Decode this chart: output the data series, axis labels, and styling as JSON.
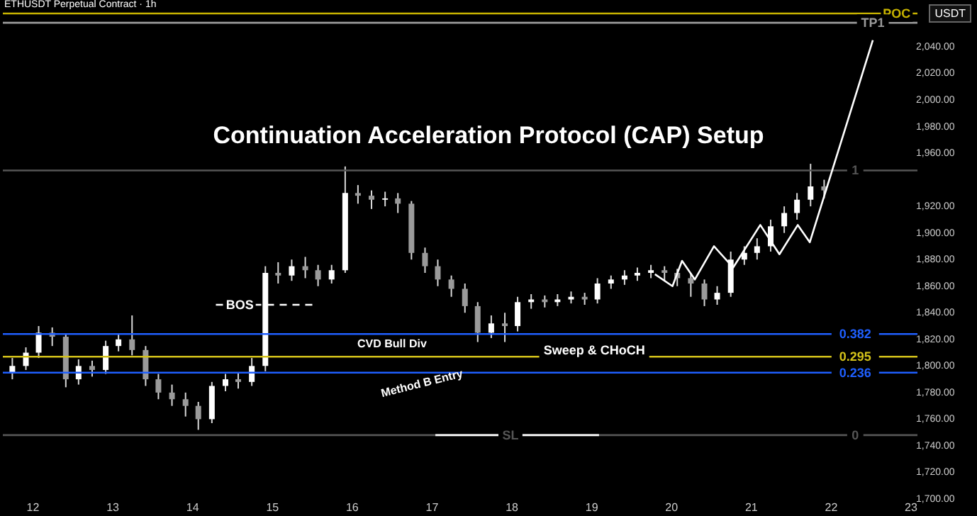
{
  "chart_data": {
    "type": "candlestick",
    "title": "Continuation Acceleration Protocol (CAP) Setup",
    "x": [
      11.75,
      11.92,
      12.08,
      12.25,
      12.42,
      12.58,
      12.75,
      12.92,
      13.08,
      13.25,
      13.42,
      13.58,
      13.75,
      13.92,
      14.08,
      14.25,
      14.42,
      14.58,
      14.75,
      14.92,
      15.08,
      15.25,
      15.42,
      15.58,
      15.75,
      15.92,
      16.08,
      16.25,
      16.42,
      16.58,
      16.75,
      16.92,
      17.08,
      17.25,
      17.42,
      17.58,
      17.75,
      17.92,
      18.08,
      18.25,
      18.42,
      18.58,
      18.75,
      18.92,
      19.08,
      19.25,
      19.42,
      19.58,
      19.75,
      19.92,
      20.08,
      20.25,
      20.42,
      20.58,
      20.75,
      20.92,
      21.08,
      21.25,
      21.42,
      21.58,
      21.75,
      21.92
    ],
    "ohlc": [
      [
        1795,
        1806,
        1790,
        1800
      ],
      [
        1800,
        1814,
        1797,
        1810
      ],
      [
        1810,
        1830,
        1806,
        1825
      ],
      [
        1825,
        1829,
        1815,
        1822
      ],
      [
        1822,
        1824,
        1784,
        1790
      ],
      [
        1790,
        1805,
        1786,
        1800
      ],
      [
        1800,
        1804,
        1792,
        1797
      ],
      [
        1797,
        1819,
        1794,
        1815
      ],
      [
        1815,
        1824,
        1811,
        1820
      ],
      [
        1820,
        1838,
        1808,
        1812
      ],
      [
        1812,
        1815,
        1785,
        1790
      ],
      [
        1790,
        1794,
        1775,
        1780
      ],
      [
        1780,
        1786,
        1770,
        1775
      ],
      [
        1775,
        1780,
        1762,
        1770
      ],
      [
        1770,
        1773,
        1752,
        1760
      ],
      [
        1760,
        1788,
        1757,
        1785
      ],
      [
        1785,
        1794,
        1781,
        1790
      ],
      [
        1790,
        1795,
        1783,
        1788
      ],
      [
        1788,
        1806,
        1785,
        1800
      ],
      [
        1800,
        1875,
        1796,
        1870
      ],
      [
        1870,
        1878,
        1862,
        1868
      ],
      [
        1868,
        1880,
        1864,
        1875
      ],
      [
        1875,
        1882,
        1866,
        1872
      ],
      [
        1872,
        1876,
        1860,
        1865
      ],
      [
        1865,
        1876,
        1862,
        1872
      ],
      [
        1872,
        1950,
        1870,
        1930
      ],
      [
        1930,
        1936,
        1922,
        1928
      ],
      [
        1928,
        1932,
        1918,
        1925
      ],
      [
        1925,
        1931,
        1920,
        1926
      ],
      [
        1926,
        1930,
        1915,
        1922
      ],
      [
        1922,
        1924,
        1880,
        1885
      ],
      [
        1885,
        1889,
        1870,
        1875
      ],
      [
        1875,
        1880,
        1860,
        1865
      ],
      [
        1865,
        1868,
        1852,
        1858
      ],
      [
        1858,
        1862,
        1840,
        1845
      ],
      [
        1845,
        1848,
        1818,
        1825
      ],
      [
        1825,
        1838,
        1821,
        1832
      ],
      [
        1832,
        1840,
        1818,
        1830
      ],
      [
        1830,
        1852,
        1826,
        1848
      ],
      [
        1848,
        1854,
        1843,
        1850
      ],
      [
        1850,
        1853,
        1844,
        1848
      ],
      [
        1848,
        1854,
        1845,
        1850
      ],
      [
        1850,
        1856,
        1847,
        1852
      ],
      [
        1852,
        1855,
        1846,
        1850
      ],
      [
        1850,
        1866,
        1847,
        1862
      ],
      [
        1862,
        1868,
        1858,
        1865
      ],
      [
        1865,
        1872,
        1861,
        1868
      ],
      [
        1868,
        1874,
        1864,
        1870
      ],
      [
        1870,
        1876,
        1866,
        1872
      ],
      [
        1872,
        1875,
        1864,
        1870
      ],
      [
        1870,
        1873,
        1860,
        1866
      ],
      [
        1866,
        1870,
        1852,
        1862
      ],
      [
        1862,
        1865,
        1845,
        1850
      ],
      [
        1850,
        1860,
        1846,
        1855
      ],
      [
        1855,
        1886,
        1852,
        1880
      ],
      [
        1880,
        1890,
        1876,
        1885
      ],
      [
        1885,
        1896,
        1880,
        1890
      ],
      [
        1890,
        1910,
        1886,
        1905
      ],
      [
        1905,
        1920,
        1900,
        1915
      ],
      [
        1915,
        1930,
        1910,
        1925
      ],
      [
        1925,
        1952,
        1920,
        1935
      ],
      [
        1935,
        1940,
        1926,
        1932
      ]
    ],
    "series": [
      {
        "type": "line",
        "color": "#ffffff",
        "line_style": "dashed",
        "x": [
          14.3,
          15.55
        ],
        "values": [
          1846,
          1846
        ]
      },
      {
        "type": "line",
        "color": "#ffffff",
        "x": [
          17.05,
          19.1
        ],
        "values": [
          1748,
          1748
        ]
      },
      {
        "type": "line",
        "color": "#ffffff",
        "x": [
          19.8,
          20.02,
          20.14,
          20.3,
          20.54,
          20.78,
          21.12,
          21.36,
          21.59,
          21.74,
          22.53
        ],
        "values": [
          1869,
          1860,
          1879,
          1865,
          1890,
          1874,
          1906,
          1884,
          1906,
          1893,
          2045
        ]
      }
    ],
    "xlim": [
      11.72,
      23.0
    ],
    "xticks": [
      12,
      13,
      14,
      15,
      16,
      17,
      18,
      19,
      20,
      21,
      22,
      23
    ],
    "ylim": [
      1700,
      2073
    ],
    "yticks": [
      {
        "value": 1700,
        "label": "1,700.00"
      },
      {
        "value": 1720,
        "label": "1,720.00"
      },
      {
        "value": 1740,
        "label": "1,740.00"
      },
      {
        "value": 1760,
        "label": "1,760.00"
      },
      {
        "value": 1780,
        "label": "1,780.00"
      },
      {
        "value": 1800,
        "label": "1,800.00"
      },
      {
        "value": 1820,
        "label": "1,820.00"
      },
      {
        "value": 1840,
        "label": "1,840.00"
      },
      {
        "value": 1860,
        "label": "1,860.00"
      },
      {
        "value": 1880,
        "label": "1,880.00"
      },
      {
        "value": 1900,
        "label": "1,900.00"
      },
      {
        "value": 1920,
        "label": "1,920.00"
      },
      {
        "value": 1960,
        "label": "1,960.00"
      },
      {
        "value": 1980,
        "label": "1,980.00"
      },
      {
        "value": 2000,
        "label": "2,000.00"
      },
      {
        "value": 2020,
        "label": "2,020.00"
      },
      {
        "value": 2040,
        "label": "2,040.00"
      }
    ],
    "ref_lines": [
      {
        "axis": "y",
        "value": 2065,
        "color": "#c8b400"
      },
      {
        "axis": "y",
        "value": 2058,
        "color": "#9a9a9a"
      },
      {
        "axis": "y",
        "value": 1947,
        "color": "#555555"
      },
      {
        "axis": "y",
        "value": 1824,
        "color": "#1f5fff"
      },
      {
        "axis": "y",
        "value": 1807,
        "color": "#d4c21a"
      },
      {
        "axis": "y",
        "value": 1795,
        "color": "#1f5fff"
      },
      {
        "axis": "y",
        "value": 1748,
        "color": "#555555"
      }
    ],
    "annotations": [
      "ETHUSDT Perpetual Contract · 1h",
      "USDT",
      "CVD Bull Div",
      "Method B Entry",
      {
        "text": "POC",
        "x": 22.83,
        "y": 2065
      },
      {
        "text": "TP1",
        "x": 22.53,
        "y": 2058
      },
      {
        "text": "1",
        "x": 22.31,
        "y": 1947
      },
      {
        "text": "0.382",
        "x": 22.31,
        "y": 1824
      },
      {
        "text": "0.295",
        "x": 22.31,
        "y": 1807
      },
      {
        "text": "0.236",
        "x": 22.31,
        "y": 1795
      },
      {
        "text": "0",
        "x": 22.31,
        "y": 1748
      },
      {
        "text": "BOS",
        "x": 14.6,
        "y": 1846
      },
      {
        "text": "Sweep & CHoCH",
        "x": 19.04,
        "y": 1812
      },
      {
        "text": "SL",
        "x": 17.99,
        "y": 1748
      }
    ],
    "grid": false
  }
}
